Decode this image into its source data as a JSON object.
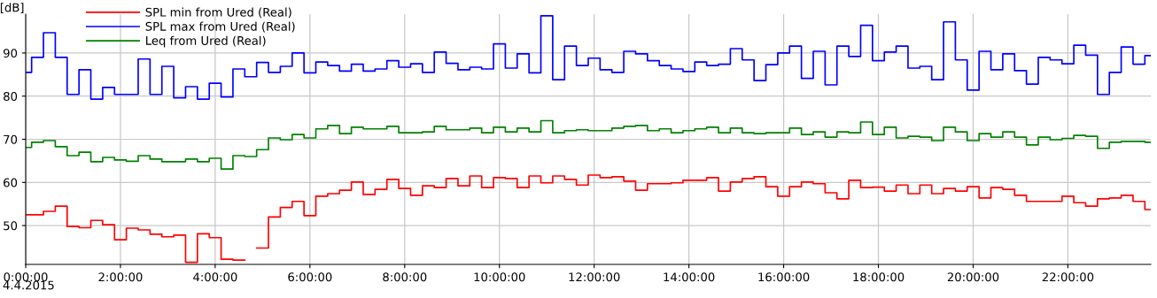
{
  "chart_data": {
    "type": "step",
    "ylabel": "[dB]",
    "annotations": [
      "4.4.2015"
    ],
    "x": [
      0,
      0.25,
      0.5,
      0.75,
      1,
      1.25,
      1.5,
      1.75,
      2,
      2.25,
      2.5,
      2.75,
      3,
      3.25,
      3.5,
      3.75,
      4,
      4.25,
      4.5,
      4.75,
      5,
      5.25,
      5.5,
      5.75,
      6,
      6.25,
      6.5,
      6.75,
      7,
      7.25,
      7.5,
      7.75,
      8,
      8.25,
      8.5,
      8.75,
      9,
      9.25,
      9.5,
      9.75,
      10,
      10.25,
      10.5,
      10.75,
      11,
      11.25,
      11.5,
      11.75,
      12,
      12.25,
      12.5,
      12.75,
      13,
      13.25,
      13.5,
      13.75,
      14,
      14.25,
      14.5,
      14.75,
      15,
      15.25,
      15.5,
      15.75,
      16,
      16.25,
      16.5,
      16.75,
      17,
      17.25,
      17.5,
      17.75,
      18,
      18.25,
      18.5,
      18.75,
      19,
      19.25,
      19.5,
      19.75,
      20,
      20.25,
      20.5,
      20.75,
      21,
      21.25,
      21.5,
      21.75,
      22,
      22.25,
      22.5,
      22.75,
      23,
      23.25,
      23.5,
      23.75
    ],
    "series": [
      {
        "name": "SPL min from Ured (Real)",
        "color": "#ff0000",
        "values": [
          52.5,
          52.5,
          53.3,
          54.5,
          49.8,
          49.5,
          51.2,
          50.2,
          46.7,
          49.4,
          49.0,
          48.0,
          47.4,
          47.8,
          41.5,
          48.1,
          47.2,
          42.2,
          42.0,
          null,
          44.8,
          52.0,
          54.2,
          55.6,
          52.3,
          56.8,
          57.4,
          58.2,
          60.1,
          57.2,
          58.4,
          60.7,
          58.6,
          57.0,
          59.2,
          58.8,
          60.9,
          59.2,
          61.5,
          58.8,
          61.1,
          60.9,
          58.8,
          61.5,
          59.9,
          61.5,
          60.7,
          59.4,
          61.7,
          61.1,
          61.3,
          60.3,
          58.2,
          59.7,
          59.7,
          59.9,
          60.5,
          60.5,
          61.1,
          58.0,
          60.1,
          60.9,
          61.3,
          59.0,
          56.8,
          59.0,
          60.1,
          59.7,
          57.6,
          56.2,
          60.5,
          58.8,
          58.9,
          58.0,
          59.4,
          57.4,
          59.4,
          57.4,
          58.6,
          58.0,
          59.0,
          56.4,
          58.8,
          58.4,
          57.0,
          55.6,
          55.6,
          55.6,
          56.8,
          55.3,
          54.5,
          56.2,
          56.4,
          57.0,
          55.6,
          53.7
        ]
      },
      {
        "name": "SPL max from Ured (Real)",
        "color": "#0000ff",
        "values": [
          85.5,
          89.0,
          94.7,
          89.0,
          80.4,
          86.1,
          79.3,
          82.0,
          80.4,
          80.4,
          88.6,
          80.4,
          86.9,
          79.6,
          82.2,
          79.3,
          83.0,
          79.8,
          86.3,
          84.5,
          87.8,
          85.5,
          86.9,
          90.0,
          85.4,
          87.9,
          87.1,
          85.8,
          87.4,
          85.8,
          86.3,
          88.2,
          86.7,
          87.5,
          85.5,
          90.2,
          87.6,
          86.1,
          86.7,
          86.3,
          92.1,
          86.5,
          89.8,
          85.4,
          98.6,
          83.8,
          91.6,
          87.1,
          88.8,
          86.1,
          85.5,
          90.4,
          89.8,
          88.2,
          87.1,
          86.3,
          85.7,
          87.9,
          87.1,
          87.4,
          91.0,
          88.4,
          83.6,
          87.3,
          90.0,
          91.6,
          84.1,
          90.4,
          82.6,
          91.6,
          89.2,
          96.4,
          88.2,
          90.2,
          91.6,
          86.5,
          86.9,
          83.8,
          97.2,
          88.4,
          81.4,
          90.4,
          86.1,
          89.8,
          85.9,
          82.8,
          89.0,
          88.4,
          87.5,
          91.8,
          89.5,
          80.4,
          85.5,
          91.4,
          87.4,
          89.4
        ]
      },
      {
        "name": "Leq from Ured (Real)",
        "color": "#008000",
        "values": [
          68.1,
          69.3,
          69.7,
          68.3,
          66.2,
          67.0,
          64.8,
          65.8,
          65.2,
          64.9,
          66.2,
          65.4,
          64.8,
          64.8,
          65.4,
          64.8,
          65.6,
          63.1,
          66.2,
          66.0,
          67.6,
          70.3,
          69.9,
          71.1,
          70.3,
          72.4,
          73.2,
          71.3,
          72.8,
          72.4,
          72.4,
          73.0,
          71.5,
          71.5,
          71.7,
          73.0,
          72.2,
          72.2,
          72.6,
          71.5,
          72.8,
          71.7,
          72.6,
          71.7,
          74.3,
          71.5,
          72.0,
          72.2,
          72.0,
          72.0,
          72.6,
          73.0,
          73.2,
          72.0,
          72.4,
          71.5,
          72.0,
          72.4,
          72.8,
          71.5,
          72.6,
          71.5,
          71.3,
          71.5,
          71.5,
          72.6,
          71.1,
          71.7,
          70.5,
          71.7,
          71.5,
          74.0,
          71.1,
          72.8,
          70.3,
          70.7,
          70.5,
          69.7,
          72.8,
          71.7,
          69.7,
          71.3,
          70.5,
          71.7,
          70.5,
          68.7,
          70.5,
          69.9,
          70.2,
          70.9,
          70.7,
          67.9,
          69.3,
          69.5,
          69.5,
          69.3
        ]
      }
    ],
    "xlim": [
      0,
      23.75
    ],
    "ylim": [
      41,
      99
    ],
    "xticks": [
      {
        "value": 0,
        "label": "0:00:00"
      },
      {
        "value": 2,
        "label": "2:00:00"
      },
      {
        "value": 4,
        "label": "4:00:00"
      },
      {
        "value": 6,
        "label": "6:00:00"
      },
      {
        "value": 8,
        "label": "8:00:00"
      },
      {
        "value": 10,
        "label": "10:00:00"
      },
      {
        "value": 12,
        "label": "12:00:00"
      },
      {
        "value": 14,
        "label": "14:00:00"
      },
      {
        "value": 16,
        "label": "16:00:00"
      },
      {
        "value": 18,
        "label": "18:00:00"
      },
      {
        "value": 20,
        "label": "20:00:00"
      },
      {
        "value": 22,
        "label": "22:00:00"
      }
    ],
    "yticks": [
      50,
      60,
      70,
      80,
      90
    ],
    "grid": true,
    "legend": "top left",
    "line_style": "solid"
  }
}
